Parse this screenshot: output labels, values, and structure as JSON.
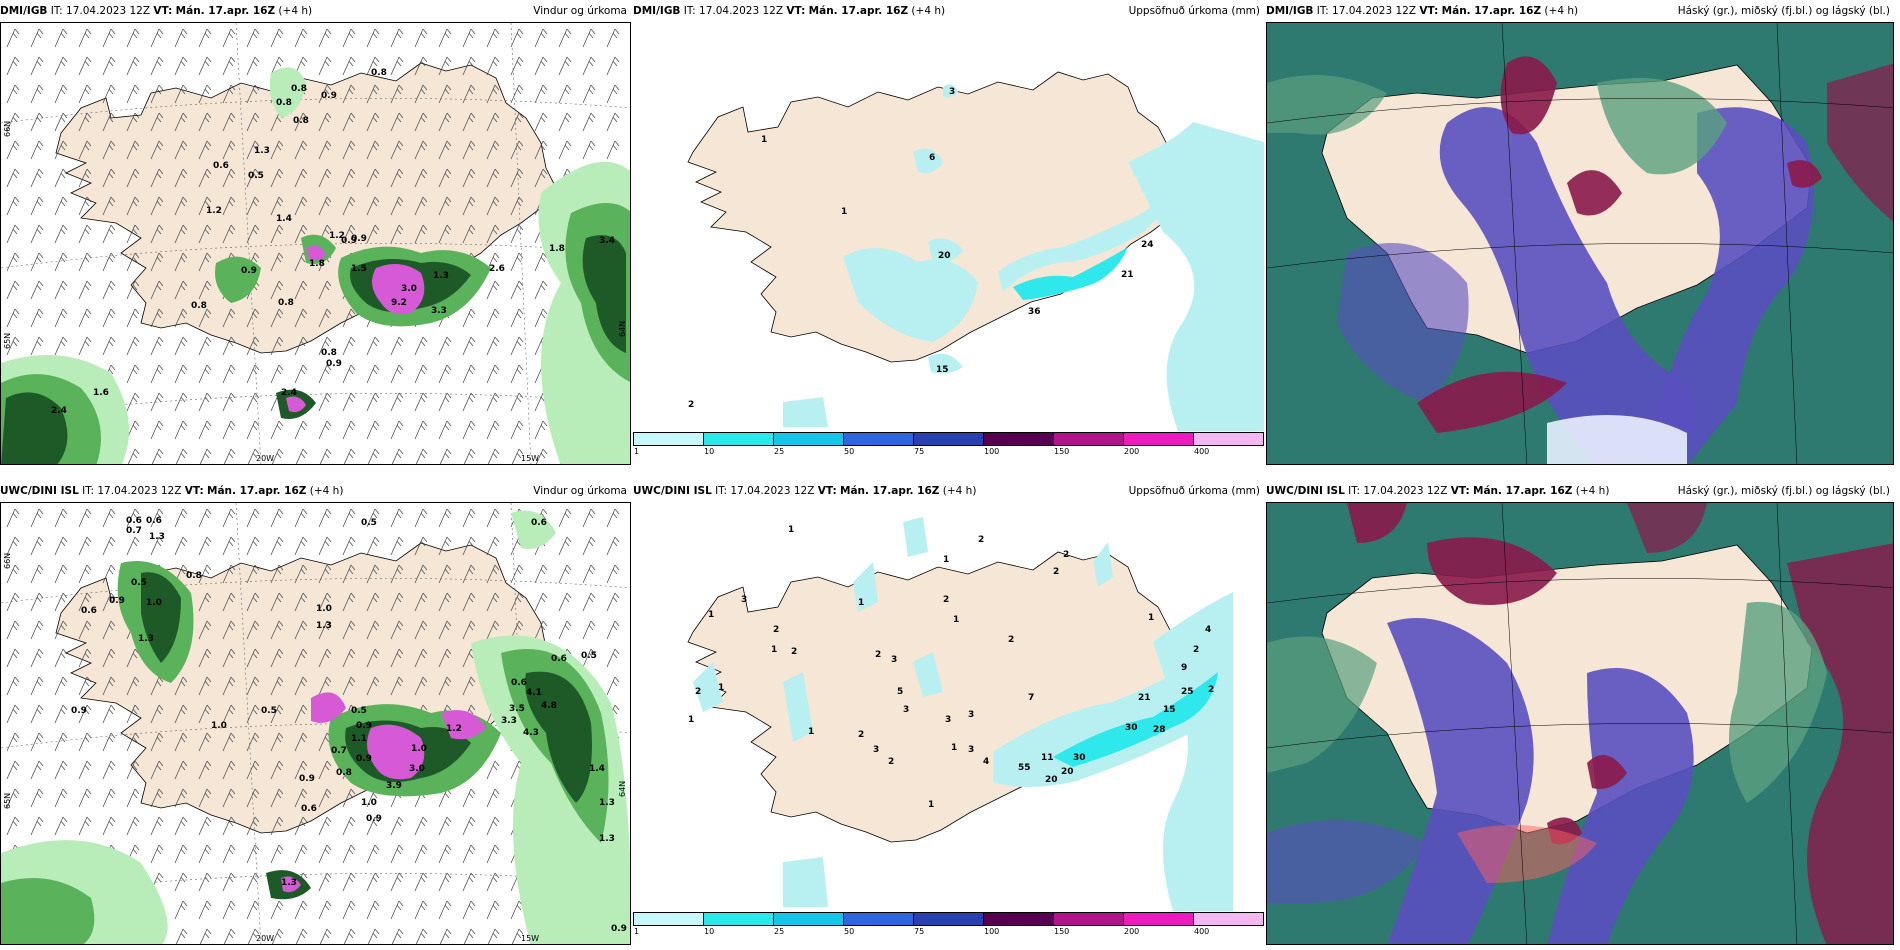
{
  "panels": [
    {
      "id": "p1",
      "model": "DMI/IGB",
      "it_label": "IT:",
      "it_value": "17.04.2023 12Z",
      "vt_label": "VT:",
      "vt_value": "Mán. 17.apr. 16Z",
      "lead": "(+4 h)",
      "title": "Vindur og úrkoma",
      "values": [
        "0.8",
        "0.9",
        "0.8",
        "0.8",
        "1.3",
        "0.6",
        "0.5",
        "1.2",
        "1.4",
        "1.2",
        "0.9",
        "1.8",
        "0.8",
        "0.9",
        "0.8",
        "1.5",
        "0.9",
        "1.3",
        "3.0",
        "3.3",
        "9.2",
        "0.8",
        "2.6",
        "3.4",
        "1.8",
        "1.6",
        "2.4",
        "2.4",
        "0.9",
        "0.8"
      ],
      "axis_labels": [
        "20W",
        "15W",
        "66N",
        "65N",
        "64N"
      ]
    },
    {
      "id": "p2",
      "model": "DMI/IGB",
      "it_label": "IT:",
      "it_value": "17.04.2023 12Z",
      "vt_label": "VT:",
      "vt_value": "Mán. 17.apr. 16Z",
      "lead": "(+4 h)",
      "title": "Uppsöfnuð úrkoma (mm)",
      "values": [
        "3",
        "1",
        "6",
        "1",
        "20",
        "36",
        "24",
        "21",
        "15",
        "2"
      ]
    },
    {
      "id": "p3",
      "model": "DMI/IGB",
      "it_label": "IT:",
      "it_value": "17.04.2023 12Z",
      "vt_label": "VT:",
      "vt_value": "Mán. 17.apr. 16Z",
      "lead": "(+4 h)",
      "title": "Háský (gr.), miðský (fj.bl.) og lágský (bl.)"
    },
    {
      "id": "p4",
      "model": "UWC/DINI ISL",
      "it_label": "IT:",
      "it_value": "17.04.2023 12Z",
      "vt_label": "VT:",
      "vt_value": "Mán. 17.apr. 16Z",
      "lead": "(+4 h)",
      "title": "Vindur og úrkoma",
      "values": [
        "0.6",
        "0.6",
        "1.3",
        "0.7",
        "0.5",
        "0.6",
        "0.5",
        "0.8",
        "0.9",
        "1.0",
        "1.3",
        "1.0",
        "1.3",
        "0.6",
        "0.9",
        "1.0",
        "0.5",
        "1.1",
        "0.7",
        "0.9",
        "1.0",
        "0.5",
        "0.8",
        "0.9",
        "3.0",
        "3.9",
        "1.0",
        "0.9",
        "1.2",
        "0.6",
        "4.8",
        "4.1",
        "3.3",
        "3.5",
        "4.3",
        "1.4",
        "1.3",
        "1.3",
        "0.9",
        "0.5",
        "0.6",
        "0.6",
        "0.9",
        "1.3"
      ],
      "axis_labels": [
        "20W",
        "15W",
        "66N",
        "65N",
        "64N"
      ]
    },
    {
      "id": "p5",
      "model": "UWC/DINI ISL",
      "it_label": "IT:",
      "it_value": "17.04.2023 12Z",
      "vt_label": "VT:",
      "vt_value": "Mán. 17.apr. 16Z",
      "lead": "(+4 h)",
      "title": "Uppsöfnuð úrkoma (mm)",
      "values": [
        "1",
        "2",
        "2",
        "1",
        "2",
        "3",
        "1",
        "1",
        "2",
        "2",
        "1",
        "2",
        "2",
        "3",
        "2",
        "1",
        "1",
        "5",
        "3",
        "3",
        "3",
        "1",
        "2",
        "2",
        "1",
        "1",
        "3",
        "3",
        "4",
        "2",
        "55",
        "20",
        "30",
        "30",
        "7",
        "28",
        "11",
        "20",
        "15",
        "25",
        "21",
        "9",
        "4",
        "2",
        "2",
        "1",
        "1"
      ]
    },
    {
      "id": "p6",
      "model": "UWC/DINI ISL",
      "it_label": "IT:",
      "it_value": "17.04.2023 12Z",
      "vt_label": "VT:",
      "vt_value": "Mán. 17.apr. 16Z",
      "lead": "(+4 h)",
      "title": "Háský (gr.), miðský (fj.bl.) og lágský (bl.)"
    }
  ],
  "precip_legend": {
    "ticks": [
      "1",
      "10",
      "25",
      "50",
      "75",
      "100",
      "150",
      "200",
      "400"
    ],
    "colors": [
      "#c8f8fb",
      "#2be8ec",
      "#16c6e8",
      "#2e66e0",
      "#2a3fb0",
      "#5a0050",
      "#b0148c",
      "#ea1cc0",
      "#f4b8f0"
    ]
  },
  "colors": {
    "land": "#f5e6d6",
    "sea": "#ffffff",
    "precip_light": "#b8ecb8",
    "precip_mid": "#5ab25a",
    "precip_dark": "#1e5a28",
    "precip_heavy": "#d65ad6",
    "accum_light": "#b8f0f2",
    "accum_mid": "#2ee8ec",
    "cloud_high": "#2f7a70",
    "cloud_mid": "#5a4fc0",
    "cloud_low": "#8a1a4a"
  }
}
